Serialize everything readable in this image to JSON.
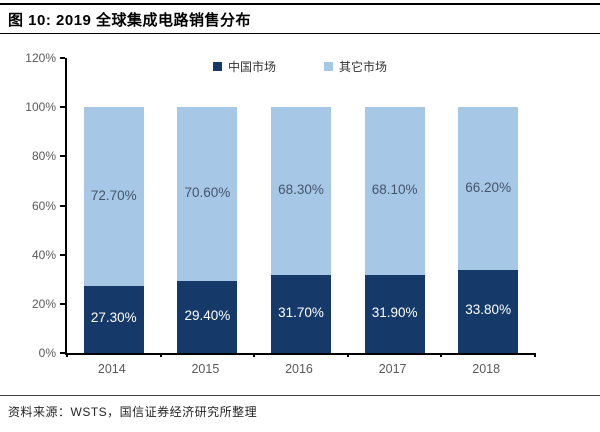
{
  "header": {
    "title": "图 10:  2019 全球集成电路销售分布"
  },
  "chart_data": {
    "type": "bar",
    "stacked": true,
    "title": "2019 全球集成电路销售分布",
    "categories": [
      "2014",
      "2015",
      "2016",
      "2017",
      "2018"
    ],
    "series": [
      {
        "name": "中国市场",
        "color": "#153a6a",
        "label_color": "#ffffff",
        "values": [
          27.3,
          29.4,
          31.7,
          31.9,
          33.8
        ],
        "labels": [
          "27.30%",
          "29.40%",
          "31.70%",
          "31.90%",
          "33.80%"
        ]
      },
      {
        "name": "其它市场",
        "color": "#a7c7e7",
        "label_color": "#44546a",
        "values": [
          72.7,
          70.6,
          68.3,
          68.1,
          66.2
        ],
        "labels": [
          "72.70%",
          "70.60%",
          "68.30%",
          "68.10%",
          "66.20%"
        ]
      }
    ],
    "xlabel": "",
    "ylabel": "",
    "ylim": [
      0,
      120
    ],
    "ytick_values": [
      0,
      20,
      40,
      60,
      80,
      100,
      120
    ],
    "ytick_labels": [
      "0%",
      "20%",
      "40%",
      "60%",
      "80%",
      "100%",
      "120%"
    ],
    "grid": false,
    "legend_position": "top"
  },
  "footer": {
    "source": "资料来源：WSTS，国信证券经济研究所整理"
  }
}
